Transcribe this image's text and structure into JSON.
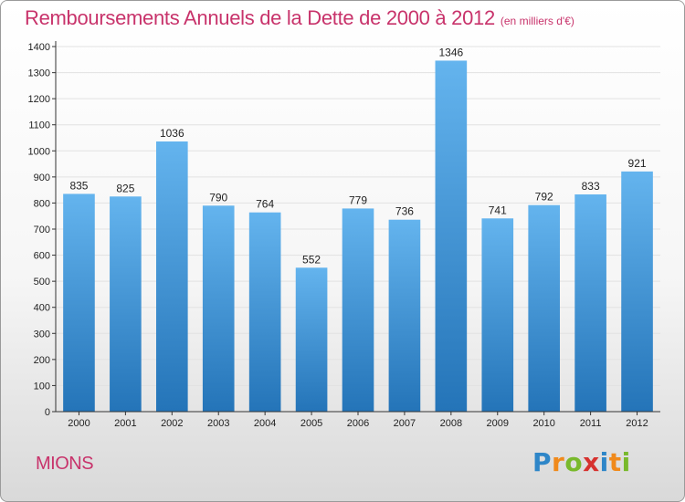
{
  "title": "Remboursements Annuels de la Dette de 2000 à 2012",
  "subtitle": "(en milliers d'€)",
  "commune": "MIONS",
  "logo": {
    "text": "Proxiti",
    "letters": [
      {
        "ch": "P",
        "color": "#2e86c8"
      },
      {
        "ch": "r",
        "color": "#f08a1c"
      },
      {
        "ch": "o",
        "color": "#79b92c"
      },
      {
        "ch": "x",
        "color": "#d6322f"
      },
      {
        "ch": "i",
        "color": "#2e86c8"
      },
      {
        "ch": "t",
        "color": "#f08a1c"
      },
      {
        "ch": "i",
        "color": "#79b92c"
      }
    ]
  },
  "colors": {
    "title": "#c8336b",
    "bar_top": "#64b4ee",
    "bar_bottom": "#2474b8",
    "grid": "#e2e2e2",
    "axis": "#333333"
  },
  "chart_data": {
    "type": "bar",
    "categories": [
      "2000",
      "2001",
      "2002",
      "2003",
      "2004",
      "2005",
      "2006",
      "2007",
      "2008",
      "2009",
      "2010",
      "2011",
      "2012"
    ],
    "values": [
      835,
      825,
      1036,
      790,
      764,
      552,
      779,
      736,
      1346,
      741,
      792,
      833,
      921
    ],
    "title": "Remboursements Annuels de la Dette de 2000 à 2012",
    "subtitle": "(en milliers d'€)",
    "xlabel": "",
    "ylabel": "",
    "ylim": [
      0,
      1400
    ],
    "yticks": [
      0,
      100,
      200,
      300,
      400,
      500,
      600,
      700,
      800,
      900,
      1000,
      1100,
      1200,
      1300,
      1400
    ],
    "grid": true,
    "legend": "none",
    "data_labels": true
  }
}
